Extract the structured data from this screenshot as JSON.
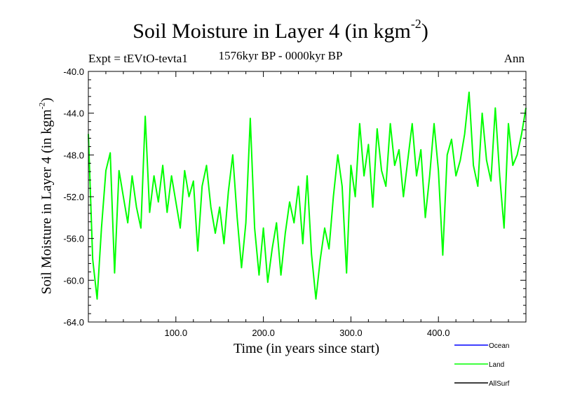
{
  "chart_data": {
    "type": "line",
    "title": {
      "prefix": "Soil Moisture in Layer 4 (in kgm",
      "sup": "-2",
      "suffix": ")"
    },
    "subtitle": "1576kyr BP - 0000kyr BP",
    "left_note": "Expt = tEVtO-tevta1",
    "right_note": "Ann",
    "xlabel": "Time (in years since start)",
    "ylabel": {
      "prefix": "Soil Moisture in Layer 4 (in kgm",
      "sup": "-2",
      "suffix": ")"
    },
    "xlim": [
      0,
      500
    ],
    "ylim": [
      -64.0,
      -40.0
    ],
    "x_ticks": [
      100,
      200,
      300,
      400
    ],
    "x_tick_labels": [
      "100.0",
      "200.0",
      "300.0",
      "400.0"
    ],
    "y_ticks": [
      -40,
      -44,
      -48,
      -52,
      -56,
      -60,
      -64
    ],
    "y_tick_labels": [
      "-40.0",
      "-44.0",
      "-48.0",
      "-52.0",
      "-56.0",
      "-60.0",
      "-64.0"
    ],
    "legend_position": "bottom-right, below plot",
    "legend": [
      {
        "name": "Ocean",
        "color": "#0000ff"
      },
      {
        "name": "Land",
        "color": "#00ff00"
      },
      {
        "name": "AllSurf",
        "color": "#000000"
      }
    ],
    "series": [
      {
        "name": "Land",
        "color": "#00ff00",
        "x": [
          0,
          5,
          10,
          15,
          20,
          25,
          30,
          35,
          40,
          45,
          50,
          55,
          60,
          65,
          70,
          75,
          80,
          85,
          90,
          95,
          100,
          105,
          110,
          115,
          120,
          125,
          130,
          135,
          140,
          145,
          150,
          155,
          160,
          165,
          170,
          175,
          180,
          185,
          190,
          195,
          200,
          205,
          210,
          215,
          220,
          225,
          230,
          235,
          240,
          245,
          250,
          255,
          260,
          265,
          270,
          275,
          280,
          285,
          290,
          295,
          300,
          305,
          310,
          315,
          320,
          325,
          330,
          335,
          340,
          345,
          350,
          355,
          360,
          365,
          370,
          375,
          380,
          385,
          390,
          395,
          400,
          405,
          410,
          415,
          420,
          425,
          430,
          435,
          440,
          445,
          450,
          455,
          460,
          465,
          470,
          475,
          480,
          485,
          490,
          495,
          500
        ],
        "values": [
          -46.0,
          -58.0,
          -61.8,
          -55.0,
          -49.5,
          -47.8,
          -59.3,
          -49.5,
          -52.0,
          -54.5,
          -50.0,
          -53.0,
          -55.0,
          -44.3,
          -53.5,
          -50.0,
          -52.5,
          -49.0,
          -53.5,
          -50.0,
          -52.5,
          -55.0,
          -49.5,
          -52.0,
          -50.5,
          -57.2,
          -51.0,
          -49.0,
          -53.0,
          -55.5,
          -53.0,
          -56.5,
          -51.5,
          -48.0,
          -54.0,
          -58.8,
          -54.5,
          -44.5,
          -55.0,
          -59.5,
          -55.0,
          -60.2,
          -57.0,
          -54.5,
          -59.5,
          -55.5,
          -52.5,
          -54.5,
          -51.0,
          -56.5,
          -50.0,
          -57.5,
          -61.8,
          -58.0,
          -55.0,
          -57.0,
          -52.0,
          -48.0,
          -51.0,
          -59.3,
          -49.0,
          -52.0,
          -45.0,
          -50.0,
          -47.0,
          -53.0,
          -45.5,
          -49.5,
          -51.0,
          -45.0,
          -49.0,
          -47.5,
          -52.0,
          -48.5,
          -45.0,
          -50.0,
          -47.5,
          -54.0,
          -50.0,
          -45.0,
          -49.5,
          -57.6,
          -48.0,
          -46.5,
          -50.0,
          -48.5,
          -46.0,
          -42.0,
          -49.0,
          -51.0,
          -44.0,
          -48.5,
          -50.5,
          -43.5,
          -50.0,
          -55.0,
          -45.0,
          -49.0,
          -48.0,
          -46.0,
          -43.5
        ]
      }
    ]
  }
}
